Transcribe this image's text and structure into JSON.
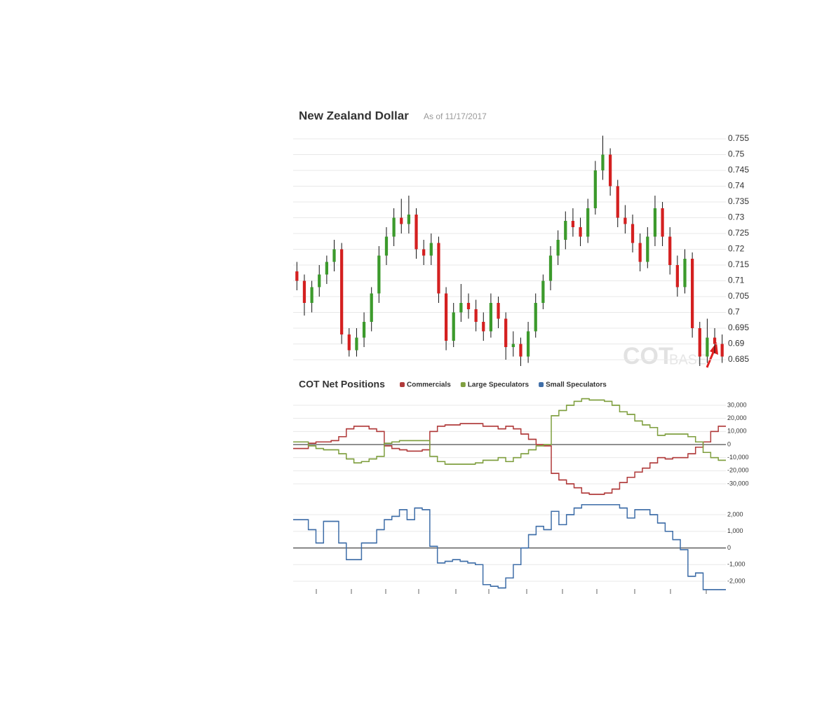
{
  "chart_data": [
    {
      "type": "candlestick",
      "title": "New Zealand Dollar",
      "subtitle": "As of 11/17/2017",
      "watermark": [
        "COT",
        "BASE"
      ],
      "up_color": "#3c9a2c",
      "down_color": "#d42020",
      "wick_color": "#111111",
      "ylim": [
        0.6825,
        0.7565
      ],
      "yticks": [
        0.685,
        0.69,
        0.695,
        0.7,
        0.705,
        0.71,
        0.715,
        0.72,
        0.725,
        0.73,
        0.735,
        0.74,
        0.745,
        0.75,
        0.755
      ],
      "grid": true,
      "open": [
        0.713,
        0.71,
        0.703,
        0.708,
        0.712,
        0.716,
        0.72,
        0.693,
        0.688,
        0.692,
        0.697,
        0.706,
        0.718,
        0.724,
        0.73,
        0.728,
        0.731,
        0.72,
        0.718,
        0.722,
        0.706,
        0.691,
        0.7,
        0.703,
        0.701,
        0.697,
        0.694,
        0.703,
        0.698,
        0.689,
        0.69,
        0.686,
        0.694,
        0.703,
        0.71,
        0.718,
        0.723,
        0.729,
        0.727,
        0.724,
        0.733,
        0.745,
        0.75,
        0.74,
        0.73,
        0.728,
        0.722,
        0.716,
        0.724,
        0.733,
        0.724,
        0.715,
        0.708,
        0.717,
        0.695,
        0.686,
        0.692,
        0.69
      ],
      "high": [
        0.716,
        0.712,
        0.71,
        0.715,
        0.718,
        0.723,
        0.722,
        0.695,
        0.695,
        0.7,
        0.708,
        0.721,
        0.727,
        0.733,
        0.736,
        0.737,
        0.733,
        0.723,
        0.725,
        0.724,
        0.708,
        0.703,
        0.709,
        0.706,
        0.704,
        0.7,
        0.706,
        0.705,
        0.7,
        0.694,
        0.692,
        0.697,
        0.706,
        0.712,
        0.721,
        0.726,
        0.732,
        0.733,
        0.73,
        0.736,
        0.748,
        0.756,
        0.752,
        0.742,
        0.734,
        0.731,
        0.725,
        0.727,
        0.737,
        0.735,
        0.727,
        0.718,
        0.72,
        0.719,
        0.697,
        0.698,
        0.695,
        0.693
      ],
      "low": [
        0.707,
        0.699,
        0.7,
        0.705,
        0.709,
        0.713,
        0.69,
        0.686,
        0.686,
        0.689,
        0.694,
        0.703,
        0.715,
        0.721,
        0.725,
        0.725,
        0.717,
        0.715,
        0.715,
        0.703,
        0.688,
        0.689,
        0.697,
        0.698,
        0.694,
        0.691,
        0.692,
        0.695,
        0.685,
        0.686,
        0.683,
        0.684,
        0.692,
        0.701,
        0.707,
        0.715,
        0.72,
        0.724,
        0.721,
        0.722,
        0.731,
        0.742,
        0.737,
        0.727,
        0.725,
        0.719,
        0.713,
        0.714,
        0.721,
        0.721,
        0.712,
        0.705,
        0.706,
        0.692,
        0.683,
        0.684,
        0.687,
        0.684
      ],
      "close": [
        0.71,
        0.703,
        0.708,
        0.712,
        0.716,
        0.72,
        0.693,
        0.688,
        0.692,
        0.697,
        0.706,
        0.718,
        0.724,
        0.73,
        0.728,
        0.731,
        0.72,
        0.718,
        0.722,
        0.706,
        0.691,
        0.7,
        0.703,
        0.701,
        0.697,
        0.694,
        0.703,
        0.698,
        0.689,
        0.69,
        0.686,
        0.694,
        0.703,
        0.71,
        0.718,
        0.723,
        0.729,
        0.727,
        0.724,
        0.733,
        0.745,
        0.75,
        0.74,
        0.73,
        0.728,
        0.722,
        0.716,
        0.724,
        0.733,
        0.724,
        0.715,
        0.708,
        0.717,
        0.695,
        0.686,
        0.692,
        0.69,
        0.686
      ]
    },
    {
      "type": "line",
      "title": "COT Net Positions",
      "step": true,
      "ylim": [
        -38000,
        38000
      ],
      "yticks": [
        {
          "value": -30000,
          "label": "-30,000"
        },
        {
          "value": -20000,
          "label": "-20,000"
        },
        {
          "value": -10000,
          "label": "-10,000"
        },
        0,
        {
          "value": 10000,
          "label": "10,000"
        },
        {
          "value": 20000,
          "label": "20,000"
        },
        {
          "value": 30000,
          "label": "30,000"
        }
      ],
      "grid": true,
      "series": [
        {
          "name": "Commercials",
          "color": "#b03a3a",
          "values": [
            -3000,
            -3000,
            1000,
            2000,
            2000,
            3000,
            6000,
            12000,
            14000,
            14000,
            12000,
            10000,
            -1000,
            -3000,
            -4000,
            -5000,
            -5000,
            -4000,
            10000,
            14000,
            15000,
            15000,
            16000,
            16000,
            16000,
            14000,
            14000,
            12000,
            14000,
            12000,
            8000,
            4000,
            0,
            -1000,
            -22000,
            -27000,
            -30000,
            -33000,
            -37000,
            -38000,
            -38000,
            -37000,
            -34000,
            -29000,
            -25000,
            -21000,
            -18000,
            -14000,
            -10000,
            -11000,
            -10000,
            -10000,
            -7000,
            -2000,
            2000,
            10000,
            14000,
            14000
          ]
        },
        {
          "name": "Large Speculators",
          "color": "#7f9f3f",
          "values": [
            2000,
            2000,
            -1000,
            -3000,
            -4000,
            -4000,
            -7000,
            -11000,
            -14000,
            -13000,
            -11000,
            -9000,
            1000,
            2000,
            3000,
            3000,
            3000,
            3000,
            -9000,
            -13000,
            -15000,
            -15000,
            -15000,
            -15000,
            -14000,
            -12000,
            -12000,
            -10000,
            -13000,
            -10000,
            -7000,
            -4000,
            -1000,
            0,
            22000,
            26000,
            30000,
            33000,
            35000,
            34000,
            34000,
            33000,
            30000,
            25000,
            23000,
            18000,
            15000,
            13000,
            7000,
            8000,
            8000,
            8000,
            6000,
            2000,
            -6000,
            -10000,
            -12000,
            -12000
          ]
        }
      ]
    },
    {
      "type": "line",
      "step": true,
      "ylim": [
        -2600,
        2700
      ],
      "yticks": [
        {
          "value": -2000,
          "label": "-2,000"
        },
        {
          "value": -1000,
          "label": "-1,000"
        },
        0,
        {
          "value": 1000,
          "label": "1,000"
        },
        {
          "value": 2000,
          "label": "2,000"
        }
      ],
      "grid": true,
      "series": [
        {
          "name": "Small Speculators",
          "color": "#3f6ea8",
          "values": [
            1700,
            1700,
            1100,
            300,
            1600,
            1600,
            300,
            -700,
            -700,
            300,
            300,
            1100,
            1700,
            1900,
            2300,
            1700,
            2400,
            2300,
            100,
            -900,
            -800,
            -700,
            -800,
            -900,
            -1000,
            -2200,
            -2300,
            -2400,
            -1800,
            -1000,
            0,
            800,
            1300,
            1100,
            2200,
            1400,
            2000,
            2400,
            2600,
            2600,
            2600,
            2600,
            2600,
            2400,
            1800,
            2300,
            2300,
            2000,
            1500,
            1000,
            500,
            -100,
            -1700,
            -1500,
            -2500,
            -2500,
            -2500,
            -2500
          ]
        }
      ]
    }
  ]
}
